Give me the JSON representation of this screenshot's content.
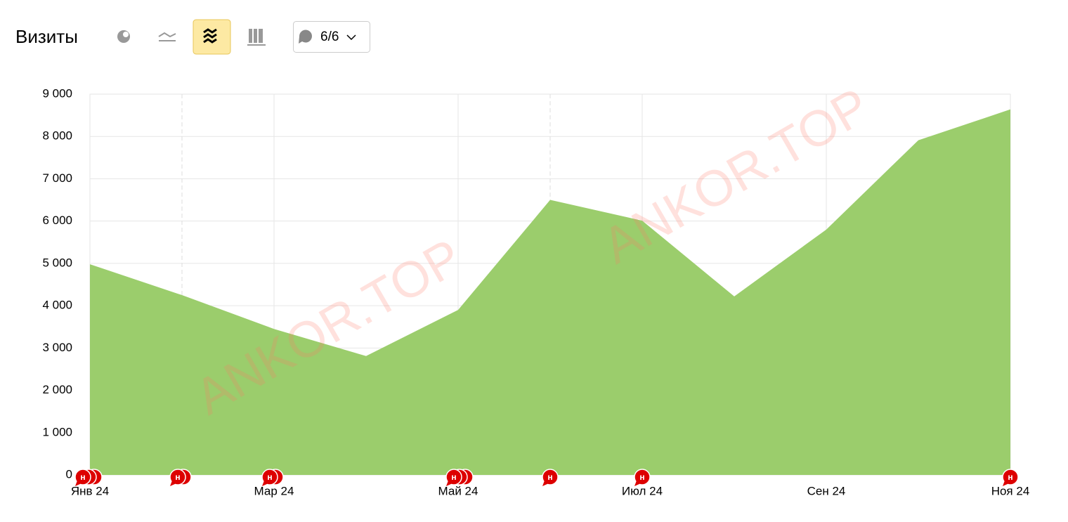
{
  "header": {
    "title": "Визиты",
    "filter_button": "6/6"
  },
  "watermark": [
    "ANKOR.TOP",
    "ANKOR.TOP"
  ],
  "annotation_label": "н",
  "chart_data": {
    "type": "area",
    "categories": [
      "Янв 24",
      null,
      "Мар 24",
      null,
      "Май 24",
      null,
      "Июл 24",
      null,
      "Сен 24",
      null,
      "Ноя 24"
    ],
    "series": [
      {
        "name": "Визиты",
        "color": "#9bcd6c",
        "values": [
          4980,
          4250,
          3450,
          2810,
          3900,
          6500,
          6010,
          4220,
          5800,
          7910,
          8640
        ]
      }
    ],
    "ylim": [
      0,
      9000
    ],
    "yticks": [
      0,
      {
        "value": 1000,
        "label": "1 000"
      },
      {
        "value": 2000,
        "label": "2 000"
      },
      {
        "value": 3000,
        "label": "3 000"
      },
      {
        "value": 4000,
        "label": "4 000"
      },
      {
        "value": 5000,
        "label": "5 000"
      },
      {
        "value": 6000,
        "label": "6 000"
      },
      {
        "value": 7000,
        "label": "7 000"
      },
      {
        "value": 8000,
        "label": "8 000"
      },
      {
        "value": 9000,
        "label": "9 000"
      }
    ],
    "grid": true
  }
}
